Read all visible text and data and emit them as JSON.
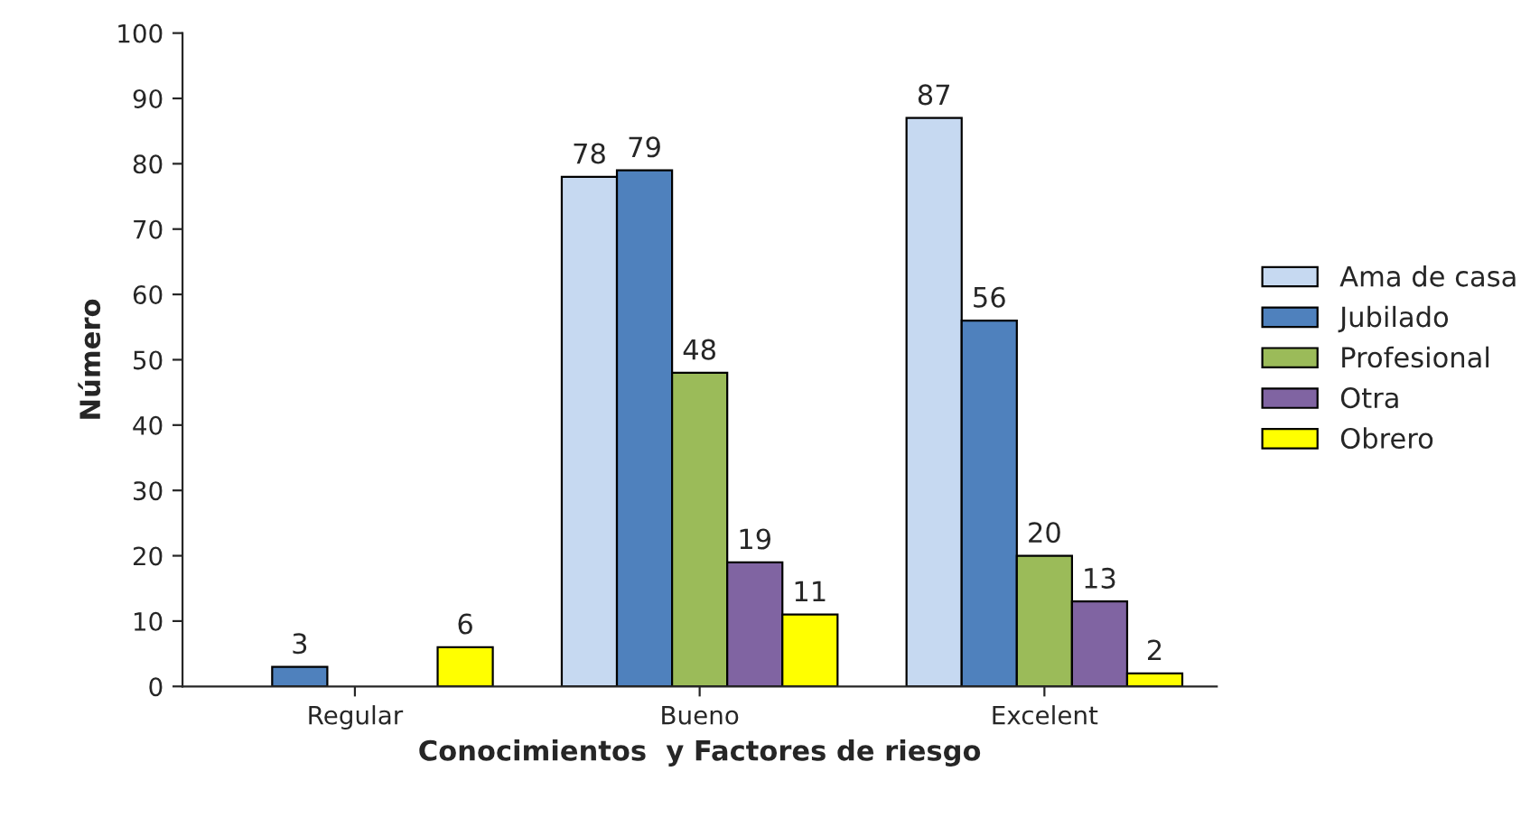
{
  "chart_data": {
    "type": "bar",
    "xlabel": "Conocimientos  y Factores de riesgo",
    "ylabel": "Número",
    "categories": [
      "Regular",
      "Bueno",
      "Excelent"
    ],
    "series": [
      {
        "name": "Ama de casa",
        "color": "#c6d9f1",
        "values": [
          null,
          78,
          87
        ]
      },
      {
        "name": "Jubilado",
        "color": "#4f81bd",
        "values": [
          3,
          79,
          56
        ]
      },
      {
        "name": "Profesional",
        "color": "#9bbb59",
        "values": [
          null,
          48,
          20
        ]
      },
      {
        "name": "Otra",
        "color": "#8064a2",
        "values": [
          null,
          19,
          13
        ]
      },
      {
        "name": "Obrero",
        "color": "#ffff00",
        "values": [
          6,
          11,
          2
        ]
      }
    ],
    "ylim": [
      0,
      100
    ],
    "yticks": [
      0,
      10,
      20,
      30,
      40,
      50,
      60,
      70,
      80,
      90,
      100
    ],
    "grid": false,
    "legend": "right",
    "data_labels": true
  }
}
